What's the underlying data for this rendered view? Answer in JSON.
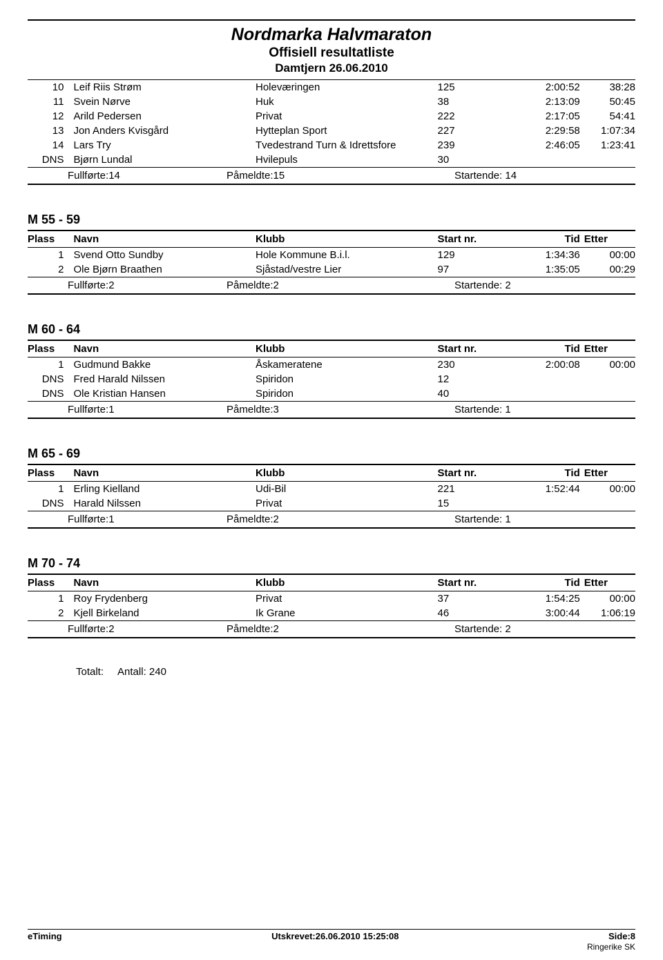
{
  "header": {
    "title": "Nordmarka Halvmaraton",
    "subtitle": "Offisiell resultatliste",
    "event": "Damtjern 26.06.2010"
  },
  "cols": {
    "plass": "Plass",
    "navn": "Navn",
    "klubb": "Klubb",
    "start": "Start nr.",
    "tid": "Tid",
    "etter": "Etter"
  },
  "labels": {
    "fullforte": "Fullførte:",
    "pameldte": "Påmeldte:",
    "startende": "Startende:",
    "totalt": "Totalt:",
    "antall": "Antall: 240"
  },
  "top_rows": [
    {
      "plass": "10",
      "navn": "Leif Riis Strøm",
      "klubb": "Holeværingen",
      "start": "125",
      "tid": "2:00:52",
      "etter": "38:28"
    },
    {
      "plass": "11",
      "navn": "Svein Nørve",
      "klubb": "Huk",
      "start": "38",
      "tid": "2:13:09",
      "etter": "50:45"
    },
    {
      "plass": "12",
      "navn": "Arild Pedersen",
      "klubb": "Privat",
      "start": "222",
      "tid": "2:17:05",
      "etter": "54:41"
    },
    {
      "plass": "13",
      "navn": "Jon Anders Kvisgård",
      "klubb": "Hytteplan Sport",
      "start": "227",
      "tid": "2:29:58",
      "etter": "1:07:34"
    },
    {
      "plass": "14",
      "navn": "Lars Try",
      "klubb": "Tvedestrand Turn & Idrettsfore",
      "start": "239",
      "tid": "2:46:05",
      "etter": "1:23:41"
    },
    {
      "plass": "DNS",
      "navn": "Bjørn Lundal",
      "klubb": "Hvilepuls",
      "start": "30",
      "tid": "",
      "etter": ""
    }
  ],
  "top_summary": {
    "fullforte": "14",
    "pameldte": "15",
    "startende": "14"
  },
  "sections": [
    {
      "title": "M 55 - 59",
      "rows": [
        {
          "plass": "1",
          "navn": "Svend Otto Sundby",
          "klubb": "Hole Kommune B.i.l.",
          "start": "129",
          "tid": "1:34:36",
          "etter": "00:00"
        },
        {
          "plass": "2",
          "navn": "Ole Bjørn Braathen",
          "klubb": "Sjåstad/vestre Lier",
          "start": "97",
          "tid": "1:35:05",
          "etter": "00:29"
        }
      ],
      "summary": {
        "fullforte": "2",
        "pameldte": "2",
        "startende": "2"
      }
    },
    {
      "title": "M 60 - 64",
      "rows": [
        {
          "plass": "1",
          "navn": "Gudmund Bakke",
          "klubb": "Åskameratene",
          "start": "230",
          "tid": "2:00:08",
          "etter": "00:00"
        },
        {
          "plass": "DNS",
          "navn": "Fred Harald Nilssen",
          "klubb": "Spiridon",
          "start": "12",
          "tid": "",
          "etter": ""
        },
        {
          "plass": "DNS",
          "navn": "Ole Kristian Hansen",
          "klubb": "Spiridon",
          "start": "40",
          "tid": "",
          "etter": ""
        }
      ],
      "summary": {
        "fullforte": "1",
        "pameldte": "3",
        "startende": "1"
      }
    },
    {
      "title": "M 65 - 69",
      "rows": [
        {
          "plass": "1",
          "navn": "Erling Kielland",
          "klubb": "Udi-Bil",
          "start": "221",
          "tid": "1:52:44",
          "etter": "00:00"
        },
        {
          "plass": "DNS",
          "navn": "Harald Nilssen",
          "klubb": "Privat",
          "start": "15",
          "tid": "",
          "etter": ""
        }
      ],
      "summary": {
        "fullforte": "1",
        "pameldte": "2",
        "startende": "1"
      }
    },
    {
      "title": "M 70 - 74",
      "rows": [
        {
          "plass": "1",
          "navn": "Roy Frydenberg",
          "klubb": "Privat",
          "start": "37",
          "tid": "1:54:25",
          "etter": "00:00"
        },
        {
          "plass": "2",
          "navn": "Kjell Birkeland",
          "klubb": "Ik Grane",
          "start": "46",
          "tid": "3:00:44",
          "etter": "1:06:19"
        }
      ],
      "summary": {
        "fullforte": "2",
        "pameldte": "2",
        "startende": "2"
      }
    }
  ],
  "footer": {
    "left": "eTiming",
    "center": "Utskrevet:26.06.2010 15:25:08",
    "right": "Side:8",
    "sub": "Ringerike SK"
  }
}
